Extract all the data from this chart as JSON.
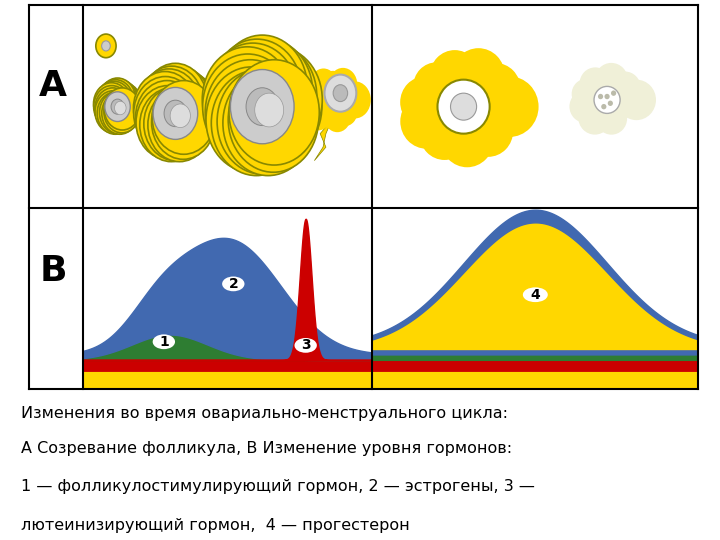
{
  "caption_line1": "Изменения во время овариально-менструального цикла:",
  "caption_line2": "А Созревание фолликула, В Изменение уровня гормонов:",
  "caption_line3": "1 — фолликулостимулирующий гормон, 2 — эстрогены, 3 —",
  "caption_line4": "лютеинизирующий гормон,  4 — прогестерон",
  "label_A": "А",
  "label_B": "В",
  "color_yellow": "#FFD700",
  "color_blue": "#4169B0",
  "color_red": "#CC0000",
  "color_green": "#2E7D32",
  "color_orange": "#FFA500",
  "color_white": "#FFFFFF",
  "color_border": "#000000",
  "bg_color": "#FFFFFF",
  "font_size_caption": 11.5,
  "font_size_label": 26
}
